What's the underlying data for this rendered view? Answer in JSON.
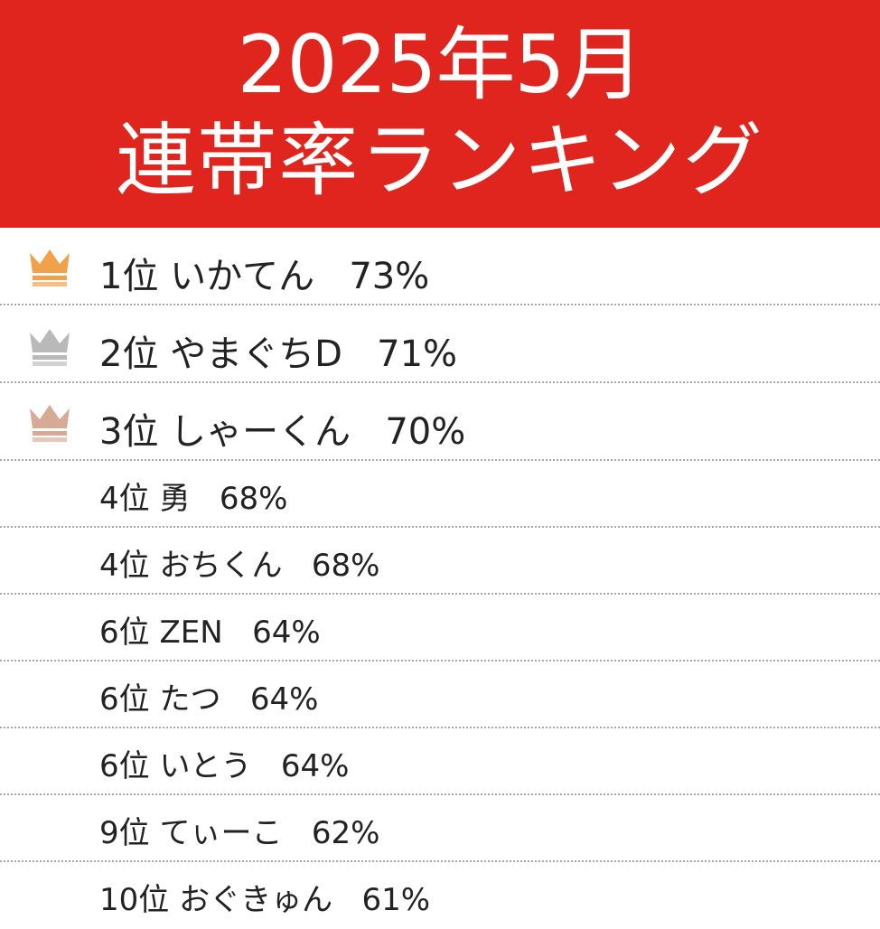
{
  "header": {
    "title_line1": "2025年5月",
    "title_line2": "連帯率ランキング",
    "background_color": "#e0251f"
  },
  "crowns": {
    "gold": "#f0a24a",
    "silver": "#b9b9b9",
    "bronze": "#d7aa96"
  },
  "ranking": [
    {
      "rank": "1位",
      "name": "いかてん",
      "rate": "73%",
      "icon": "gold-crown-icon"
    },
    {
      "rank": "2位",
      "name": "やまぐちD",
      "rate": "71%",
      "icon": "silver-crown-icon"
    },
    {
      "rank": "3位",
      "name": "しゃーくん",
      "rate": "70%",
      "icon": "bronze-crown-icon"
    },
    {
      "rank": "4位",
      "name": "勇",
      "rate": "68%"
    },
    {
      "rank": "4位",
      "name": "おちくん",
      "rate": "68%"
    },
    {
      "rank": "6位",
      "name": "ZEN",
      "rate": "64%"
    },
    {
      "rank": "6位",
      "name": "たつ",
      "rate": "64%"
    },
    {
      "rank": "6位",
      "name": "いとう",
      "rate": "64%"
    },
    {
      "rank": "9位",
      "name": "てぃーこ",
      "rate": "62%"
    },
    {
      "rank": "10位",
      "name": "おぐきゅん",
      "rate": "61%"
    }
  ]
}
